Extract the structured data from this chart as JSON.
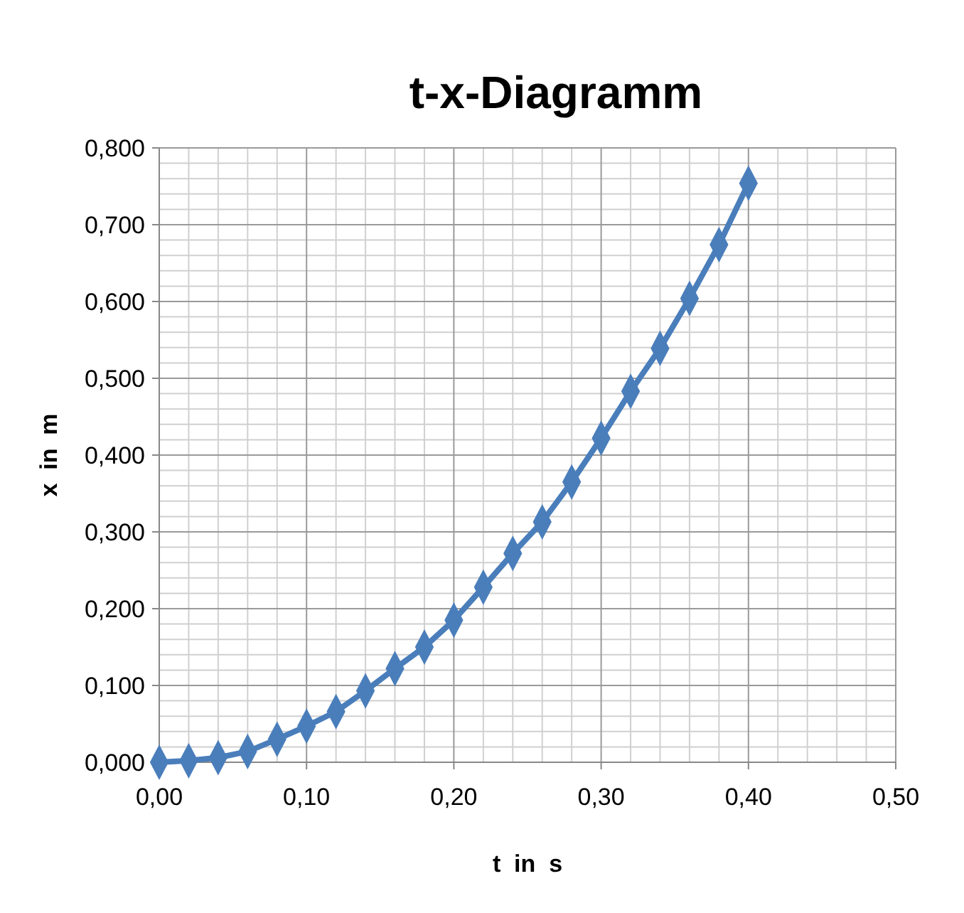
{
  "chart_data": {
    "type": "line",
    "title": "t-x-Diagramm",
    "xlabel": "t  in  s",
    "ylabel": "x  in  m",
    "x": [
      0,
      0.02,
      0.04,
      0.06,
      0.08,
      0.1,
      0.12,
      0.14,
      0.16,
      0.18,
      0.2,
      0.22,
      0.24,
      0.26,
      0.28,
      0.3,
      0.32,
      0.34,
      0.36,
      0.38,
      0.4
    ],
    "series": [
      {
        "color": "#4a7ebb",
        "values": [
          0,
          0.002,
          0.006,
          0.014,
          0.03,
          0.047,
          0.066,
          0.093,
          0.122,
          0.15,
          0.185,
          0.228,
          0.272,
          0.313,
          0.365,
          0.422,
          0.483,
          0.539,
          0.604,
          0.674,
          0.754
        ]
      }
    ],
    "xlim": [
      0,
      0.5
    ],
    "xticks": [
      {
        "value": 0,
        "label": "0,00"
      },
      {
        "value": 0.1,
        "label": "0,10"
      },
      {
        "value": 0.2,
        "label": "0,20"
      },
      {
        "value": 0.3,
        "label": "0,30"
      },
      {
        "value": 0.4,
        "label": "0,40"
      },
      {
        "value": 0.5,
        "label": "0,50"
      }
    ],
    "ylim": [
      0,
      0.8
    ],
    "yticks": [
      {
        "value": 0,
        "label": "0,000"
      },
      {
        "value": 0.1,
        "label": "0,100"
      },
      {
        "value": 0.2,
        "label": "0,200"
      },
      {
        "value": 0.3,
        "label": "0,300"
      },
      {
        "value": 0.4,
        "label": "0,400"
      },
      {
        "value": 0.5,
        "label": "0,500"
      },
      {
        "value": 0.6,
        "label": "0,600"
      },
      {
        "value": 0.7,
        "label": "0,700"
      },
      {
        "value": 0.8,
        "label": "0,800"
      }
    ],
    "grid": true,
    "marker": "diamond",
    "line_style": "solid"
  }
}
